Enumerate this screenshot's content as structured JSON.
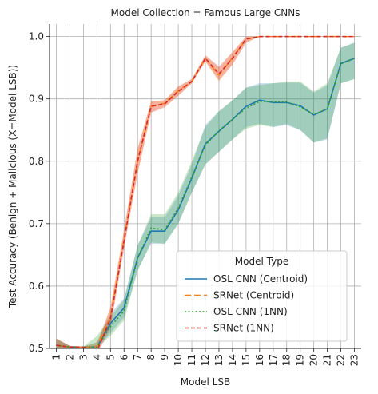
{
  "chart_data": {
    "type": "line",
    "title": "Model Collection = Famous Large CNNs",
    "xlabel": "Model LSB",
    "ylabel": "Test Accuracy (Benign + Malicious (X=Model LSB))",
    "x": [
      1,
      2,
      3,
      4,
      5,
      6,
      7,
      8,
      9,
      10,
      11,
      12,
      13,
      14,
      15,
      16,
      17,
      18,
      19,
      20,
      21,
      22,
      23
    ],
    "xlim": [
      0.5,
      23.5
    ],
    "ylim": [
      0.5,
      1.02
    ],
    "yticks": [
      0.5,
      0.6,
      0.7,
      0.8,
      0.9,
      1.0
    ],
    "ytick_labels": [
      "0.5",
      "0.6",
      "0.7",
      "0.8",
      "0.9",
      "1.0"
    ],
    "xtick_labels": [
      "1",
      "2",
      "3",
      "4",
      "5",
      "6",
      "7",
      "8",
      "9",
      "10",
      "11",
      "12",
      "13",
      "14",
      "15",
      "16",
      "17",
      "18",
      "19",
      "20",
      "21",
      "22",
      "23"
    ],
    "grid": true,
    "legend": {
      "title": "Model Type",
      "placement": "lower-right"
    },
    "series": [
      {
        "name": "OSL CNN (Centroid)",
        "color": "#1f77b4",
        "dash": "solid",
        "values": [
          0.505,
          0.502,
          0.502,
          0.502,
          0.54,
          0.565,
          0.645,
          0.688,
          0.688,
          0.722,
          0.773,
          0.828,
          0.848,
          0.867,
          0.888,
          0.898,
          0.894,
          0.894,
          0.889,
          0.874,
          0.884,
          0.957,
          0.965
        ],
        "lower": [
          0.5,
          0.5,
          0.5,
          0.5,
          0.525,
          0.55,
          0.625,
          0.668,
          0.668,
          0.7,
          0.75,
          0.795,
          0.815,
          0.835,
          0.855,
          0.86,
          0.855,
          0.858,
          0.85,
          0.83,
          0.835,
          0.925,
          0.932
        ],
        "upper": [
          0.515,
          0.504,
          0.503,
          0.51,
          0.556,
          0.58,
          0.665,
          0.71,
          0.71,
          0.745,
          0.795,
          0.858,
          0.88,
          0.897,
          0.918,
          0.925,
          0.925,
          0.926,
          0.926,
          0.91,
          0.922,
          0.982,
          0.99
        ]
      },
      {
        "name": "SRNet (Centroid)",
        "color": "#ff7f0e",
        "dash": "8,4",
        "values": [
          0.505,
          0.502,
          0.502,
          0.502,
          0.55,
          0.675,
          0.8,
          0.888,
          0.893,
          0.913,
          0.928,
          0.965,
          0.938,
          0.966,
          0.996,
          1.0,
          1.0,
          1.0,
          1.0,
          1.0,
          1.0,
          1.0,
          1.0
        ],
        "lower": [
          0.5,
          0.5,
          0.5,
          0.5,
          0.535,
          0.665,
          0.78,
          0.878,
          0.888,
          0.905,
          0.925,
          0.96,
          0.928,
          0.955,
          0.99,
          1.0,
          1.0,
          1.0,
          1.0,
          1.0,
          1.0,
          1.0,
          1.0
        ],
        "upper": [
          0.516,
          0.504,
          0.503,
          0.51,
          0.566,
          0.69,
          0.82,
          0.896,
          0.898,
          0.92,
          0.932,
          0.97,
          0.95,
          0.975,
          1.0,
          1.0,
          1.0,
          1.0,
          1.0,
          1.0,
          1.0,
          1.0,
          1.0
        ]
      },
      {
        "name": "OSL CNN (1NN)",
        "color": "#2ca02c",
        "dash": "2,2.5",
        "values": [
          0.505,
          0.502,
          0.502,
          0.502,
          0.535,
          0.56,
          0.645,
          0.693,
          0.69,
          0.725,
          0.775,
          0.826,
          0.849,
          0.867,
          0.885,
          0.896,
          0.895,
          0.895,
          0.887,
          0.875,
          0.884,
          0.956,
          0.965
        ],
        "lower": [
          0.5,
          0.5,
          0.5,
          0.5,
          0.52,
          0.545,
          0.625,
          0.67,
          0.668,
          0.7,
          0.75,
          0.795,
          0.815,
          0.835,
          0.852,
          0.858,
          0.855,
          0.86,
          0.85,
          0.83,
          0.837,
          0.925,
          0.932
        ],
        "upper": [
          0.515,
          0.504,
          0.503,
          0.52,
          0.55,
          0.578,
          0.665,
          0.715,
          0.715,
          0.75,
          0.8,
          0.855,
          0.88,
          0.898,
          0.918,
          0.922,
          0.925,
          0.928,
          0.928,
          0.912,
          0.925,
          0.982,
          0.99
        ]
      },
      {
        "name": "SRNet (1NN)",
        "color": "#d62728",
        "dash": "5,3",
        "values": [
          0.505,
          0.502,
          0.502,
          0.495,
          0.548,
          0.672,
          0.8,
          0.888,
          0.892,
          0.912,
          0.928,
          0.965,
          0.94,
          0.965,
          0.996,
          1.0,
          1.0,
          1.0,
          1.0,
          1.0,
          1.0,
          1.0,
          1.0
        ],
        "lower": [
          0.5,
          0.5,
          0.5,
          0.49,
          0.532,
          0.66,
          0.78,
          0.878,
          0.886,
          0.905,
          0.925,
          0.96,
          0.93,
          0.955,
          0.99,
          1.0,
          1.0,
          1.0,
          1.0,
          1.0,
          1.0,
          1.0,
          1.0
        ],
        "upper": [
          0.516,
          0.504,
          0.503,
          0.505,
          0.565,
          0.69,
          0.82,
          0.896,
          0.898,
          0.92,
          0.932,
          0.97,
          0.952,
          0.975,
          1.0,
          1.0,
          1.0,
          1.0,
          1.0,
          1.0,
          1.0,
          1.0,
          1.0
        ]
      }
    ]
  }
}
